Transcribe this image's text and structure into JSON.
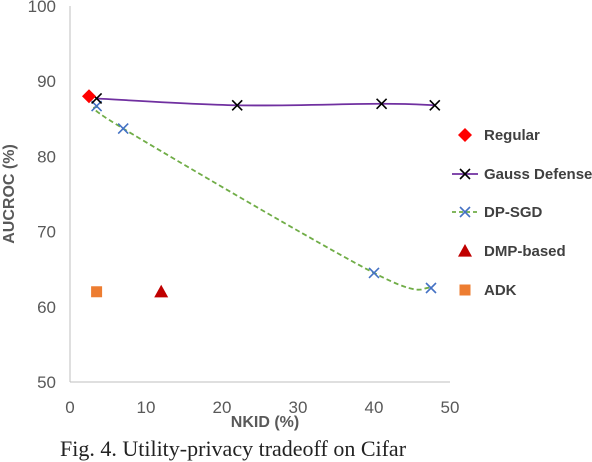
{
  "chart_data": {
    "type": "line",
    "xlabel": "NKID (%)",
    "ylabel": "AUCROC (%)",
    "xlim": [
      0,
      50
    ],
    "ylim": [
      50,
      100
    ],
    "x_ticks": [
      "0",
      "10",
      "20",
      "30",
      "40",
      "50"
    ],
    "y_ticks": [
      "50",
      "60",
      "70",
      "80",
      "90",
      "100"
    ],
    "legend_position": "right",
    "series": [
      {
        "name": "Regular",
        "style": "marker-diamond",
        "color": "#ff0000",
        "points": [
          [
            2.5,
            88
          ]
        ]
      },
      {
        "name": "Gauss Defense",
        "style": "line-x",
        "line_color": "#7030a0",
        "marker_color": "#000000",
        "points": [
          [
            3.5,
            87.7
          ],
          [
            22,
            86.8
          ],
          [
            41,
            87.0
          ],
          [
            48,
            86.8
          ]
        ]
      },
      {
        "name": "DP-SGD",
        "style": "dashed-x",
        "line_color": "#70ad47",
        "marker_color": "#4472c4",
        "points": [
          [
            3.5,
            86.7
          ],
          [
            7,
            83.7
          ],
          [
            40,
            64.5
          ],
          [
            47.5,
            62.5
          ]
        ]
      },
      {
        "name": "DMP-based",
        "style": "marker-triangle",
        "color": "#c00000",
        "points": [
          [
            12,
            62
          ]
        ]
      },
      {
        "name": "ADK",
        "style": "marker-square",
        "color": "#ed7d31",
        "points": [
          [
            3.5,
            62
          ]
        ]
      }
    ]
  },
  "caption": "Fig. 4. Utility-privacy tradeoff on Cifar"
}
